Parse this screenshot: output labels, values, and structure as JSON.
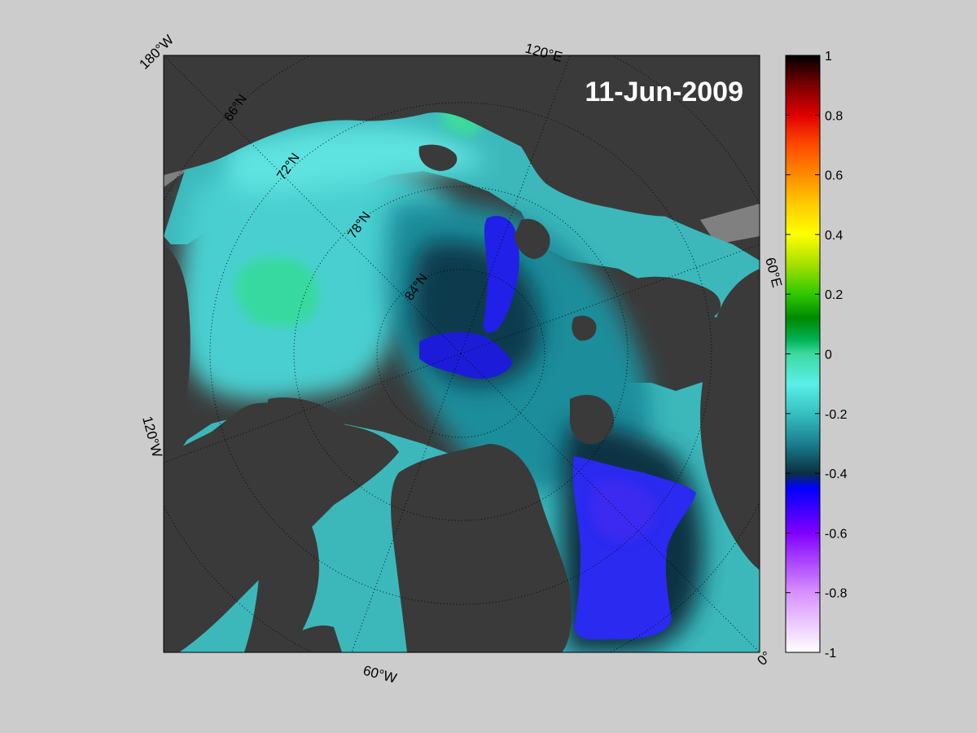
{
  "map": {
    "date_label": "11-Jun-2009",
    "colors": {
      "land": "#3a3a3a",
      "missing": "#808080",
      "background": "#cccccc"
    },
    "longitude_labels": [
      {
        "id": "180w",
        "text": "180°W"
      },
      {
        "id": "120e",
        "text": "120°E"
      },
      {
        "id": "60e",
        "text": "60°E"
      },
      {
        "id": "0",
        "text": "0°"
      },
      {
        "id": "60w",
        "text": "60°W"
      },
      {
        "id": "120w",
        "text": "120°W"
      }
    ],
    "latitude_labels": [
      {
        "id": "66n",
        "text": "66°N"
      },
      {
        "id": "72n",
        "text": "72°N"
      },
      {
        "id": "78n",
        "text": "78°N"
      },
      {
        "id": "84n",
        "text": "84°N"
      }
    ]
  },
  "colorbar": {
    "min": -1,
    "max": 1,
    "ticks": [
      "1",
      "0.8",
      "0.6",
      "0.4",
      "0.2",
      "0",
      "-0.2",
      "-0.4",
      "-0.6",
      "-0.8",
      "-1"
    ],
    "stops": [
      {
        "v": 1.0,
        "c": "#000000"
      },
      {
        "v": 0.9,
        "c": "#7a0000"
      },
      {
        "v": 0.8,
        "c": "#e00000"
      },
      {
        "v": 0.7,
        "c": "#ff4a00"
      },
      {
        "v": 0.6,
        "c": "#ff8a00"
      },
      {
        "v": 0.5,
        "c": "#ffcc00"
      },
      {
        "v": 0.4,
        "c": "#ffff00"
      },
      {
        "v": 0.3,
        "c": "#a8e000"
      },
      {
        "v": 0.2,
        "c": "#2ec800"
      },
      {
        "v": 0.12,
        "c": "#008a00"
      },
      {
        "v": 0.05,
        "c": "#00b050"
      },
      {
        "v": 0.0,
        "c": "#3cd9a0"
      },
      {
        "v": -0.1,
        "c": "#5af0e8"
      },
      {
        "v": -0.2,
        "c": "#36c0c0"
      },
      {
        "v": -0.3,
        "c": "#1a7f8f"
      },
      {
        "v": -0.4,
        "c": "#0a3040"
      },
      {
        "v": -0.45,
        "c": "#0000ff"
      },
      {
        "v": -0.6,
        "c": "#8000ff"
      },
      {
        "v": -0.8,
        "c": "#d890ff"
      },
      {
        "v": -1.0,
        "c": "#ffffff"
      }
    ]
  }
}
